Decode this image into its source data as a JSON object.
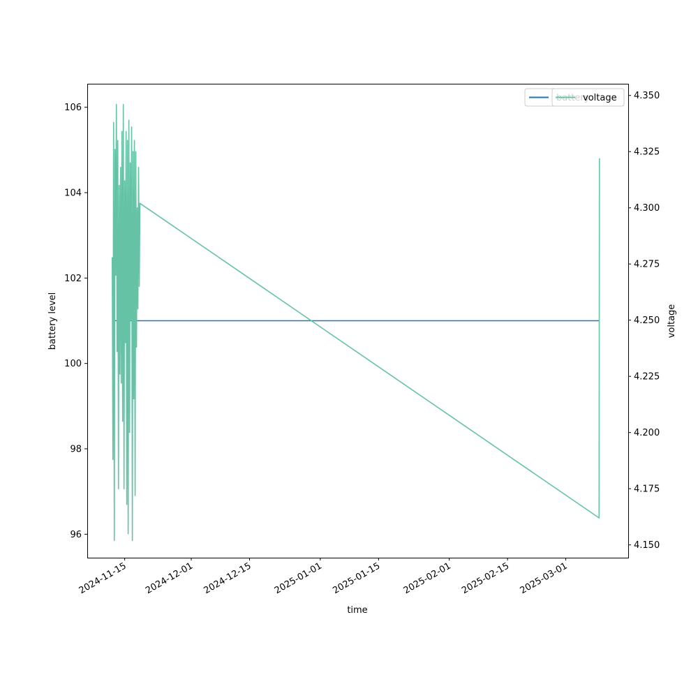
{
  "chart_data": {
    "type": "line",
    "xlabel": "time",
    "ylabel_left": "battery level",
    "ylabel_right": "voltage",
    "x_ticks": [
      "2024-11-15",
      "2024-12-01",
      "2024-12-15",
      "2025-01-01",
      "2025-01-15",
      "2025-02-01",
      "2025-02-15",
      "2025-03-01"
    ],
    "xlim": [
      "2024-11-06",
      "2025-03-16"
    ],
    "ylim_left": [
      95.45,
      106.55
    ],
    "ylim_right": [
      4.1443,
      4.3552
    ],
    "y_ticks_left": [
      "96",
      "98",
      "100",
      "102",
      "104",
      "106"
    ],
    "y_ticks_right": [
      "4.150",
      "4.175",
      "4.200",
      "4.225",
      "4.250",
      "4.275",
      "4.300",
      "4.325",
      "4.350"
    ],
    "legend_left": {
      "position": "upper right",
      "entries": [
        "battery"
      ]
    },
    "legend_right": {
      "position": "upper right",
      "entries": [
        "voltage"
      ]
    },
    "series": [
      {
        "name": "battery",
        "axis": "left",
        "color": "#1f77b4",
        "points": [
          [
            "2024-11-12",
            101
          ],
          [
            "2025-03-09",
            101
          ]
        ]
      },
      {
        "name": "voltage",
        "axis": "right",
        "color": "#66c2a5",
        "points": [
          [
            "2024-11-12 00:00",
            4.278
          ],
          [
            "2024-11-12 04:00",
            4.188
          ],
          [
            "2024-11-12 08:00",
            4.338
          ],
          [
            "2024-11-12 12:00",
            4.152
          ],
          [
            "2024-11-12 16:00",
            4.326
          ],
          [
            "2024-11-12 20:00",
            4.27
          ],
          [
            "2024-11-13 00:00",
            4.346
          ],
          [
            "2024-11-13 04:00",
            4.236
          ],
          [
            "2024-11-13 08:00",
            4.33
          ],
          [
            "2024-11-13 12:00",
            4.175
          ],
          [
            "2024-11-13 16:00",
            4.31
          ],
          [
            "2024-11-13 20:00",
            4.226
          ],
          [
            "2024-11-14 00:00",
            4.318
          ],
          [
            "2024-11-14 04:00",
            4.222
          ],
          [
            "2024-11-14 08:00",
            4.334
          ],
          [
            "2024-11-14 12:00",
            4.205
          ],
          [
            "2024-11-14 16:00",
            4.346
          ],
          [
            "2024-11-14 20:00",
            4.175
          ],
          [
            "2024-11-15 00:00",
            4.312
          ],
          [
            "2024-11-15 04:00",
            4.24
          ],
          [
            "2024-11-15 08:00",
            4.334
          ],
          [
            "2024-11-15 12:00",
            4.168
          ],
          [
            "2024-11-15 16:00",
            4.33
          ],
          [
            "2024-11-15 20:00",
            4.155
          ],
          [
            "2024-11-16 00:00",
            4.339
          ],
          [
            "2024-11-16 04:00",
            4.2
          ],
          [
            "2024-11-16 08:00",
            4.32
          ],
          [
            "2024-11-16 12:00",
            4.25
          ],
          [
            "2024-11-16 16:00",
            4.336
          ],
          [
            "2024-11-16 20:00",
            4.152
          ],
          [
            "2024-11-17 00:00",
            4.325
          ],
          [
            "2024-11-17 04:00",
            4.215
          ],
          [
            "2024-11-17 08:00",
            4.33
          ],
          [
            "2024-11-17 12:00",
            4.172
          ],
          [
            "2024-11-17 16:00",
            4.325
          ],
          [
            "2024-11-17 20:00",
            4.238
          ],
          [
            "2024-11-18 00:00",
            4.3
          ],
          [
            "2024-11-18 04:00",
            4.255
          ],
          [
            "2024-11-18 08:00",
            4.318
          ],
          [
            "2024-11-18 12:00",
            4.265
          ],
          [
            "2024-11-18 16:00",
            4.302
          ],
          [
            "2025-03-09 00:00",
            4.162
          ],
          [
            "2025-03-09 02:00",
            4.322
          ]
        ]
      }
    ]
  }
}
